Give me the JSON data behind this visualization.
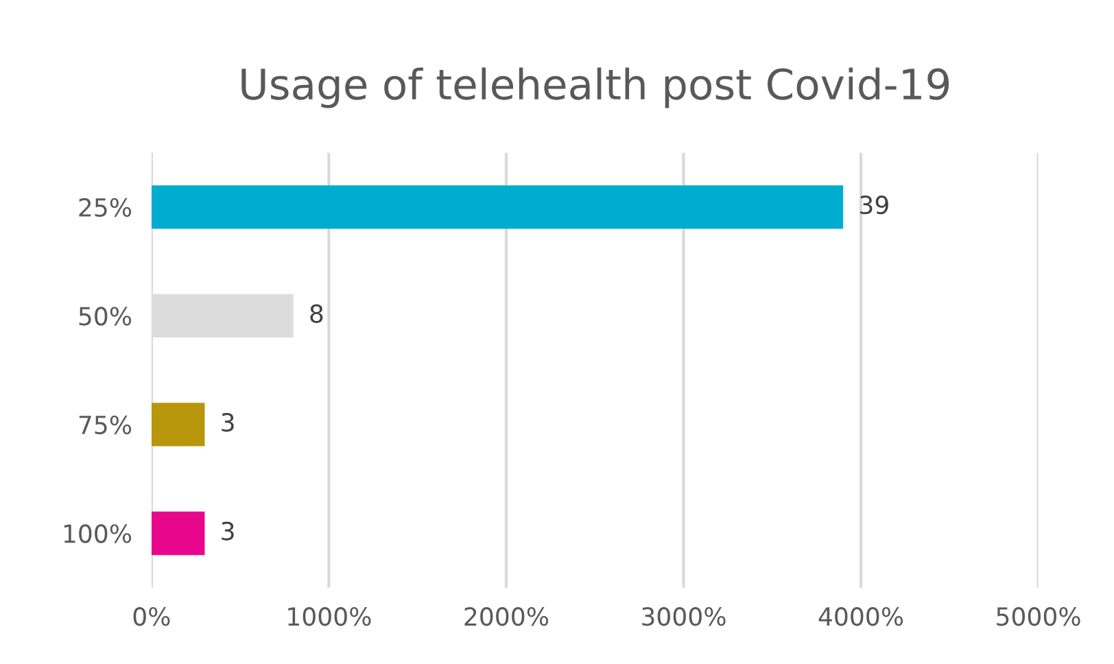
{
  "chart_data": {
    "type": "bar",
    "orientation": "horizontal",
    "title": "Usage of telehealth post Covid-19",
    "categories": [
      "25%",
      "50%",
      "75%",
      "100%"
    ],
    "values": [
      39,
      8,
      3,
      3
    ],
    "data_labels": true,
    "colors": [
      "#00acd0",
      "#dcdcdc",
      "#b8960c",
      "#e8078c"
    ],
    "xlim": [
      0,
      50
    ],
    "xticks": [
      {
        "value": 0,
        "label": "0%"
      },
      {
        "value": 10,
        "label": "1000%"
      },
      {
        "value": 20,
        "label": "2000%"
      },
      {
        "value": 30,
        "label": "3000%"
      },
      {
        "value": 40,
        "label": "4000%"
      },
      {
        "value": 50,
        "label": "5000%"
      }
    ],
    "grid": "x",
    "legend": false
  }
}
